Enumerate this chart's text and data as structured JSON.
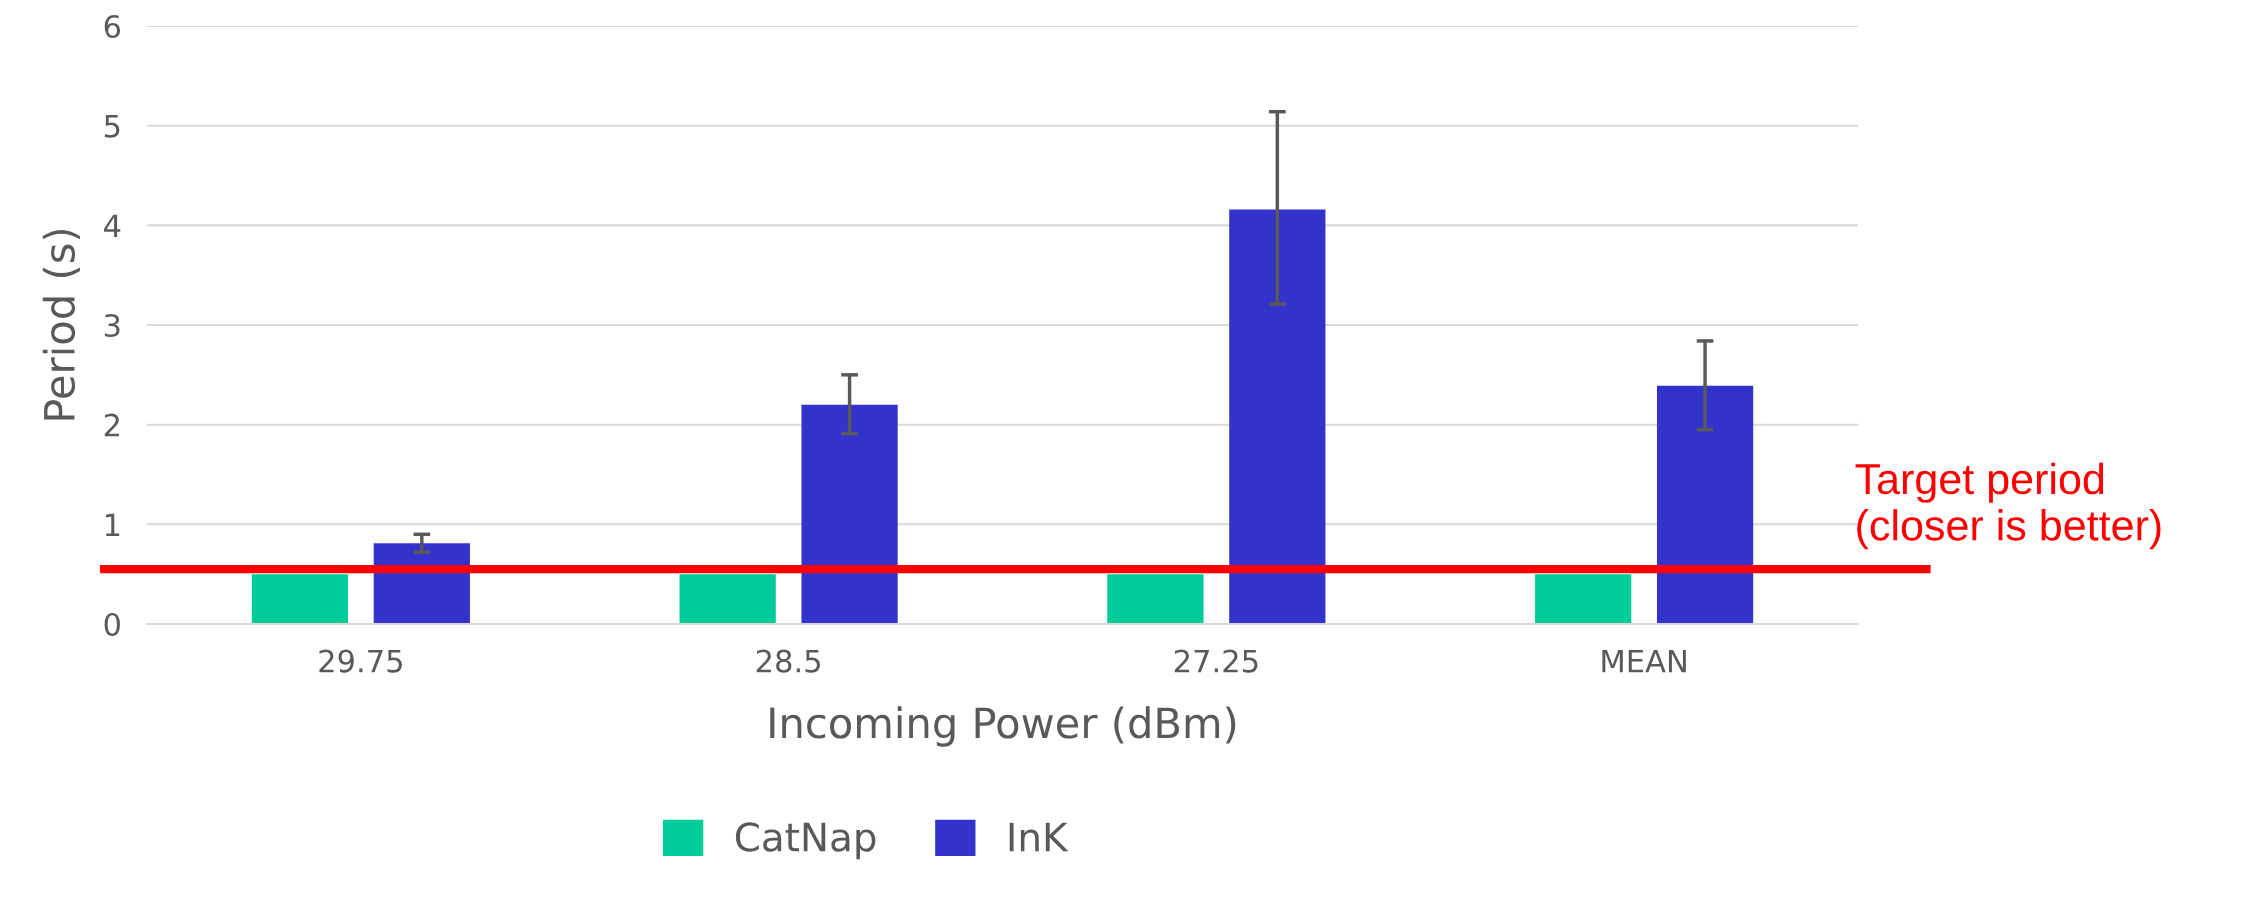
{
  "chart_data": {
    "type": "bar",
    "xlabel": "Incoming Power (dBm)",
    "ylabel": "Period (s)",
    "categories": [
      "29.75",
      "28.5",
      "27.25",
      "MEAN"
    ],
    "series": [
      {
        "name": "CatNap",
        "color": "#00cc99",
        "values": [
          0.5,
          0.5,
          0.5,
          0.5
        ]
      },
      {
        "name": "InK",
        "color": "#3333cc",
        "values": [
          0.81,
          2.2,
          4.16,
          2.39
        ],
        "errors": [
          [
            0.72,
            0.9
          ],
          [
            1.91,
            2.5
          ],
          [
            3.21,
            5.14
          ],
          [
            1.95,
            2.84
          ]
        ]
      }
    ],
    "ylim": [
      0,
      6
    ],
    "yticks": [
      0,
      1,
      2,
      3,
      4,
      5,
      6
    ],
    "grid": "y",
    "legend": "bottom",
    "ref_lines": [
      {
        "axis": "y",
        "value": 0.55,
        "label": "Target period\n(closer is better)",
        "color": "#ff0000"
      }
    ]
  }
}
